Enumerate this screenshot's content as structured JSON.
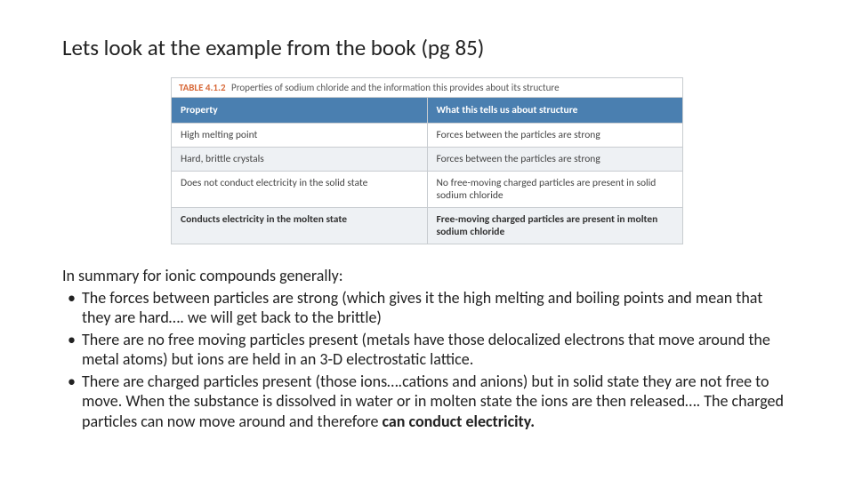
{
  "title": "Lets look at the example from the book (pg 85)",
  "table": {
    "caption_label": "TABLE 4.1.2",
    "caption_text": "Properties of sodium chloride and the information this provides about its structure",
    "header_bg": "#4a7fb0",
    "header_fg": "#ffffff",
    "border_color": "#c8ccd0",
    "alt_row_bg": "#eef1f4",
    "columns": [
      "Property",
      "What this tells us about structure"
    ],
    "rows": [
      [
        "High melting point",
        "Forces between the particles are strong"
      ],
      [
        "Hard, brittle crystals",
        "Forces between the particles are strong"
      ],
      [
        "Does not conduct electricity in the solid state",
        "No free-moving charged particles are present in solid sodium chloride"
      ],
      [
        "Conducts electricity in the molten state",
        "Free-moving charged particles are present in molten sodium chloride"
      ]
    ]
  },
  "summary": {
    "intro": "In summary for ionic compounds generally:",
    "bullets": [
      "The forces between particles are strong (which gives it the high melting and boiling points and mean that they are hard…. we will get back to the brittle)",
      "There are no free moving particles present (metals have those delocalized electrons that move around the metal atoms) but ions are held in an 3-D electrostatic lattice.",
      "There are charged particles present (those ions….cations and anions) but in solid state they are not free to move.  When the substance is dissolved in water or in molten state the ions are then released…. The charged particles can now move around and therefore "
    ],
    "bullet3_strong": "can conduct electricity."
  }
}
